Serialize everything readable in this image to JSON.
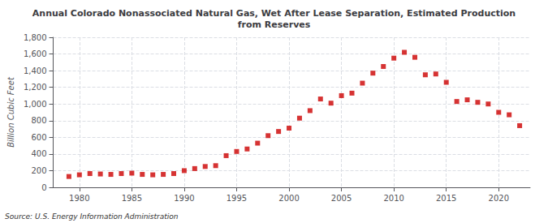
{
  "chart_data": {
    "type": "scatter",
    "title": "Annual Colorado Nonassociated Natural Gas, Wet After Lease Separation, Estimated Production\nfrom Reserves",
    "ylabel": "Billion Cubic Feet",
    "annotation": "Source: U.S. Energy Information Administration",
    "color": "#cc0000",
    "marker": "square",
    "x": [
      1979,
      1980,
      1981,
      1982,
      1983,
      1984,
      1985,
      1986,
      1987,
      1988,
      1989,
      1990,
      1991,
      1992,
      1993,
      1994,
      1995,
      1996,
      1997,
      1998,
      1999,
      2000,
      2001,
      2002,
      2003,
      2004,
      2005,
      2006,
      2007,
      2008,
      2009,
      2010,
      2011,
      2012,
      2013,
      2014,
      2015,
      2016,
      2017,
      2018,
      2019,
      2020,
      2021,
      2022
    ],
    "values": [
      130,
      150,
      165,
      160,
      155,
      165,
      170,
      155,
      150,
      155,
      165,
      200,
      225,
      250,
      260,
      380,
      430,
      460,
      530,
      620,
      670,
      710,
      830,
      920,
      1060,
      1010,
      1100,
      1130,
      1250,
      1370,
      1450,
      1550,
      1620,
      1560,
      1350,
      1360,
      1260,
      1030,
      1050,
      1020,
      1000,
      900,
      870,
      740
    ],
    "xlim": [
      1977.5,
      2023
    ],
    "ylim": [
      0,
      1800
    ],
    "xticks": [
      1980,
      1985,
      1990,
      1995,
      2000,
      2005,
      2010,
      2015,
      2020
    ],
    "yticks": [
      0,
      200,
      400,
      600,
      800,
      {
        "value": 1000,
        "label": "1,000"
      },
      {
        "value": 1200,
        "label": "1,200"
      },
      {
        "value": 1400,
        "label": "1,400"
      },
      {
        "value": 1600,
        "label": "1,600"
      },
      {
        "value": 1800,
        "label": "1,800"
      }
    ],
    "grid": true
  }
}
